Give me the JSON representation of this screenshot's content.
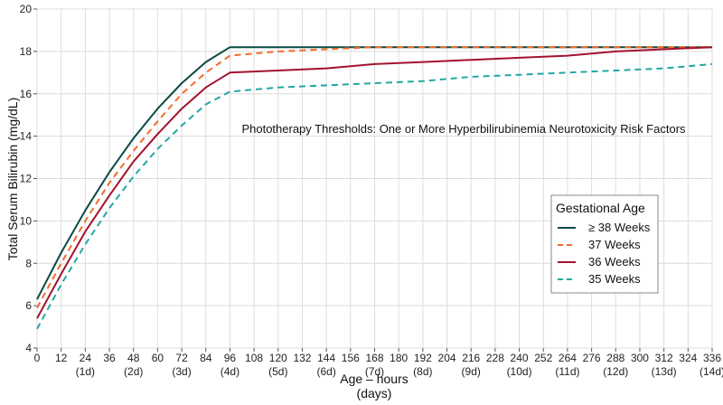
{
  "chart_data": {
    "type": "line",
    "title": "",
    "annotation": "Phototherapy Thresholds:  One or More Hyperbilirubinemia Neurotoxicity Risk Factors",
    "xlabel": "Age – hours",
    "xlabel2": "(days)",
    "ylabel": "Total Serum Bilirubin (mg/dL)",
    "xlim": [
      0,
      336
    ],
    "ylim": [
      4,
      20
    ],
    "x_ticks": [
      0,
      12,
      24,
      36,
      48,
      60,
      72,
      84,
      96,
      108,
      120,
      132,
      144,
      156,
      168,
      180,
      192,
      204,
      216,
      228,
      240,
      252,
      264,
      276,
      288,
      300,
      312,
      324,
      336
    ],
    "x_day_labels": [
      {
        "x": 24,
        "label": "(1d)"
      },
      {
        "x": 48,
        "label": "(2d)"
      },
      {
        "x": 72,
        "label": "(3d)"
      },
      {
        "x": 96,
        "label": "(4d)"
      },
      {
        "x": 120,
        "label": "(5d)"
      },
      {
        "x": 144,
        "label": "(6d)"
      },
      {
        "x": 168,
        "label": "(7d)"
      },
      {
        "x": 192,
        "label": "(8d)"
      },
      {
        "x": 216,
        "label": "(9d)"
      },
      {
        "x": 240,
        "label": "(10d)"
      },
      {
        "x": 264,
        "label": "(11d)"
      },
      {
        "x": 288,
        "label": "(12d)"
      },
      {
        "x": 312,
        "label": "(13d)"
      },
      {
        "x": 336,
        "label": "(14d)"
      }
    ],
    "y_ticks": [
      4,
      6,
      8,
      10,
      12,
      14,
      16,
      18,
      20
    ],
    "grid": true,
    "legend": {
      "title": "Gestational Age",
      "position": "right"
    },
    "series": [
      {
        "name": "≥ 38 Weeks",
        "color": "#0b4a44",
        "dash": "solid",
        "x": [
          0,
          12,
          24,
          36,
          48,
          60,
          72,
          84,
          96,
          120,
          144,
          168,
          192,
          216,
          240,
          264,
          288,
          312,
          336
        ],
        "y": [
          6.3,
          8.5,
          10.5,
          12.3,
          13.9,
          15.3,
          16.5,
          17.5,
          18.2,
          18.2,
          18.2,
          18.2,
          18.2,
          18.2,
          18.2,
          18.2,
          18.2,
          18.2,
          18.2
        ]
      },
      {
        "name": "37 Weeks",
        "color": "#f26b2a",
        "dash": "dashed",
        "x": [
          0,
          12,
          24,
          36,
          48,
          60,
          72,
          84,
          96,
          120,
          144,
          168,
          192,
          216,
          240,
          264,
          288,
          312,
          336
        ],
        "y": [
          5.9,
          8.0,
          10.0,
          11.8,
          13.3,
          14.7,
          16.0,
          17.0,
          17.8,
          18.0,
          18.1,
          18.2,
          18.2,
          18.2,
          18.2,
          18.2,
          18.2,
          18.2,
          18.2
        ]
      },
      {
        "name": "36 Weeks",
        "color": "#a3122e",
        "dash": "solid",
        "x": [
          0,
          12,
          24,
          36,
          48,
          60,
          72,
          84,
          96,
          120,
          144,
          168,
          192,
          216,
          240,
          264,
          288,
          312,
          336
        ],
        "y": [
          5.4,
          7.5,
          9.5,
          11.2,
          12.8,
          14.1,
          15.3,
          16.3,
          17.0,
          17.1,
          17.2,
          17.4,
          17.5,
          17.6,
          17.7,
          17.8,
          18.0,
          18.1,
          18.2
        ]
      },
      {
        "name": "35 Weeks",
        "color": "#22a7a5",
        "dash": "dashed",
        "x": [
          0,
          12,
          24,
          36,
          48,
          60,
          72,
          84,
          96,
          120,
          144,
          168,
          192,
          216,
          240,
          264,
          288,
          312,
          336
        ],
        "y": [
          4.9,
          7.0,
          8.9,
          10.6,
          12.1,
          13.4,
          14.5,
          15.5,
          16.1,
          16.3,
          16.4,
          16.5,
          16.6,
          16.8,
          16.9,
          17.0,
          17.1,
          17.2,
          17.4
        ]
      }
    ]
  }
}
